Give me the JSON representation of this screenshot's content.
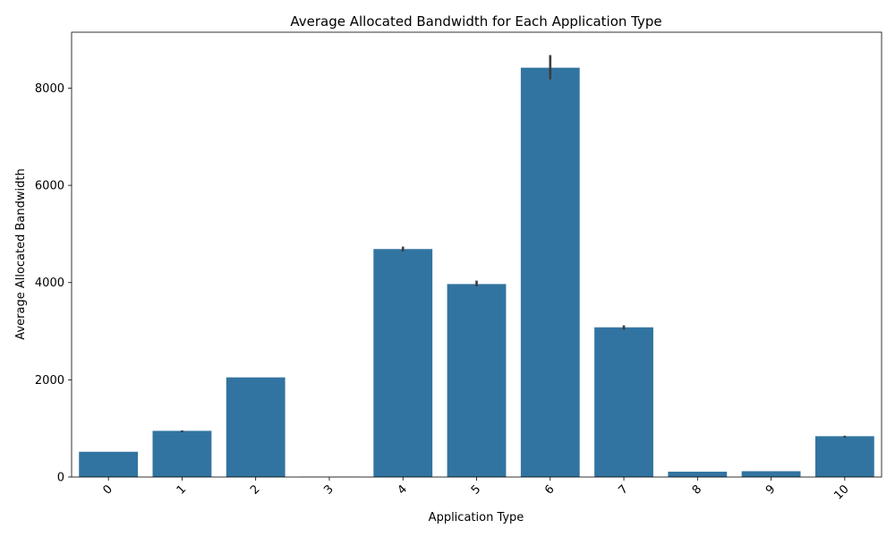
{
  "chart_data": {
    "type": "bar",
    "title": "Average Allocated Bandwidth for Each Application Type",
    "xlabel": "Application Type",
    "ylabel": "Average Allocated Bandwidth",
    "categories": [
      "0",
      "1",
      "2",
      "3",
      "4",
      "5",
      "6",
      "7",
      "8",
      "9",
      "10"
    ],
    "values": [
      520,
      950,
      2050,
      5,
      4690,
      3970,
      8420,
      3080,
      110,
      120,
      840
    ],
    "error_bars": [
      [
        520,
        520
      ],
      [
        920,
        960
      ],
      [
        2050,
        2050
      ],
      [
        5,
        5
      ],
      [
        4640,
        4740
      ],
      [
        3920,
        4040
      ],
      [
        8180,
        8680
      ],
      [
        3030,
        3120
      ],
      [
        110,
        110
      ],
      [
        120,
        120
      ],
      [
        810,
        850
      ]
    ],
    "yticks": [
      0,
      2000,
      4000,
      6000,
      8000
    ],
    "ytick_labels": [
      "0",
      "2000",
      "4000",
      "6000",
      "8000"
    ],
    "ylim": [
      0,
      9150
    ],
    "bar_color": "#3274a1",
    "error_color": "#3d3d3d",
    "grid": false,
    "xtick_rotation": 45
  }
}
